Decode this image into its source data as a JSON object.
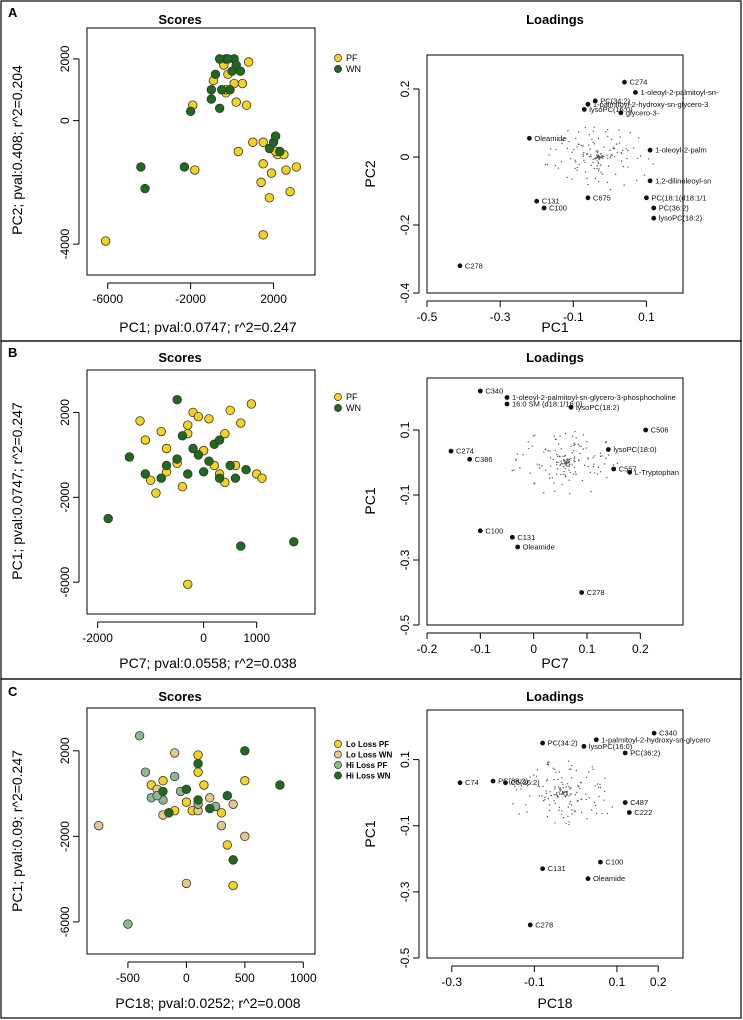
{
  "colors": {
    "pf": "#f3d31f",
    "wn": "#1e6b1e",
    "lo_pf": "#f3d31f",
    "lo_wn": "#e3c88a",
    "hi_pf": "#8fb890",
    "hi_wn": "#1e6b1e",
    "stroke": "#333333",
    "dot": "#111111"
  },
  "chart_data": [
    {
      "panel": "A",
      "type": "scatter",
      "title": "Scores",
      "xlabel": "PC1; pval:0.0747; r^2=0.247",
      "ylabel": "PC2; pval:0.408; r^2=0.204",
      "xlim": [
        -7000,
        4000
      ],
      "ylim": [
        -5000,
        3000
      ],
      "xticks": [
        -6000,
        -2000,
        2000
      ],
      "yticks": [
        -4000,
        0,
        2000
      ],
      "legend": [
        {
          "label": "PF",
          "color": "#f3d31f"
        },
        {
          "label": "WN",
          "color": "#1e6b1e"
        }
      ],
      "series": [
        {
          "name": "PF",
          "color": "#f3d31f",
          "points": [
            [
              -6100,
              -3900
            ],
            [
              -1800,
              -1600
            ],
            [
              -400,
              1800
            ],
            [
              -200,
              1500
            ],
            [
              100,
              1200
            ],
            [
              500,
              1200
            ],
            [
              800,
              1900
            ],
            [
              -900,
              1300
            ],
            [
              -300,
              900
            ],
            [
              200,
              600
            ],
            [
              700,
              500
            ],
            [
              -1900,
              500
            ],
            [
              300,
              -1000
            ],
            [
              1000,
              -700
            ],
            [
              1500,
              -700
            ],
            [
              2200,
              -1100
            ],
            [
              2500,
              -1100
            ],
            [
              3100,
              -1500
            ],
            [
              1900,
              -1700
            ],
            [
              1400,
              -2000
            ],
            [
              1800,
              -2500
            ],
            [
              1500,
              -3700
            ],
            [
              2600,
              -1600
            ],
            [
              1500,
              -1400
            ],
            [
              2100,
              -1000
            ],
            [
              -300,
              1000
            ],
            [
              2800,
              -2300
            ]
          ]
        },
        {
          "name": "WN",
          "color": "#1e6b1e",
          "points": [
            [
              -4400,
              -1500
            ],
            [
              -4200,
              -2200
            ],
            [
              -2300,
              -1500
            ],
            [
              -2000,
              300
            ],
            [
              -800,
              1500
            ],
            [
              -500,
              1000
            ],
            [
              -300,
              2000
            ],
            [
              100,
              2000
            ],
            [
              200,
              1800
            ],
            [
              -600,
              400
            ],
            [
              -1000,
              1000
            ],
            [
              -600,
              2000
            ],
            [
              0,
              1600
            ],
            [
              -200,
              2000
            ],
            [
              400,
              1600
            ],
            [
              1800,
              -900
            ],
            [
              2000,
              -700
            ],
            [
              2100,
              -500
            ],
            [
              2300,
              -1000
            ],
            [
              -1000,
              700
            ],
            [
              -100,
              1000
            ]
          ]
        }
      ]
    },
    {
      "panel": "A",
      "type": "scatter",
      "title": "Loadings",
      "xlabel": "PC1",
      "ylabel": "PC2",
      "xlim": [
        -0.5,
        0.2
      ],
      "ylim": [
        -0.4,
        0.3
      ],
      "xticks": [
        -0.5,
        -0.3,
        -0.1,
        0.1
      ],
      "yticks": [
        -0.4,
        -0.2,
        0.0,
        0.2
      ],
      "labeled_points": [
        {
          "label": "C274",
          "x": 0.04,
          "y": 0.22
        },
        {
          "label": "1-oleoyl-2-palmitoyl-sn-",
          "x": 0.07,
          "y": 0.19
        },
        {
          "label": "PC(34:2)",
          "x": -0.04,
          "y": 0.165
        },
        {
          "label": "1-palmitoyl-2-hydroxy-sn-glycero-3",
          "x": -0.06,
          "y": 0.155
        },
        {
          "label": "lysoPC(16:0)",
          "x": -0.07,
          "y": 0.14
        },
        {
          "label": "glycero-3-",
          "x": 0.03,
          "y": 0.13
        },
        {
          "label": "Oleamide",
          "x": -0.22,
          "y": 0.055
        },
        {
          "label": "1-oleoyl-2-palm",
          "x": 0.11,
          "y": 0.02
        },
        {
          "label": "1,2-dilinoleoyl-sn",
          "x": 0.11,
          "y": -0.07
        },
        {
          "label": "PC(18:1(d18:1/1",
          "x": 0.1,
          "y": -0.12
        },
        {
          "label": "PC(36:2)",
          "x": 0.12,
          "y": -0.15
        },
        {
          "label": "C675",
          "x": -0.06,
          "y": -0.12
        },
        {
          "label": "C131",
          "x": -0.2,
          "y": -0.13
        },
        {
          "label": "C100",
          "x": -0.18,
          "y": -0.15
        },
        {
          "label": "lysoPC(18:2)",
          "x": 0.12,
          "y": -0.18
        },
        {
          "label": "C278",
          "x": -0.41,
          "y": -0.32
        }
      ]
    },
    {
      "panel": "B",
      "type": "scatter",
      "title": "Scores",
      "xlabel": "PC7; pval:0.0558; r^2=0.038",
      "ylabel": "PC1; pval:0.0747; r^2=0.247",
      "xlim": [
        -2200,
        2100
      ],
      "ylim": [
        -7500,
        4000
      ],
      "xticks": [
        -2000,
        0,
        1000
      ],
      "yticks": [
        -6000,
        -2000,
        2000
      ],
      "legend": [
        {
          "label": "PF",
          "color": "#f3d31f"
        },
        {
          "label": "WN",
          "color": "#1e6b1e"
        }
      ],
      "series": [
        {
          "name": "PF",
          "color": "#f3d31f",
          "points": [
            [
              -1200,
              1600
            ],
            [
              -1100,
              700
            ],
            [
              -1000,
              -1200
            ],
            [
              -900,
              -1800
            ],
            [
              -800,
              1100
            ],
            [
              -700,
              300
            ],
            [
              -500,
              -400
            ],
            [
              -300,
              1400
            ],
            [
              -300,
              1000
            ],
            [
              -200,
              2000
            ],
            [
              -100,
              1800
            ],
            [
              0,
              200
            ],
            [
              100,
              1700
            ],
            [
              200,
              -500
            ],
            [
              400,
              1000
            ],
            [
              400,
              -1300
            ],
            [
              500,
              2100
            ],
            [
              600,
              -500
            ],
            [
              700,
              1500
            ],
            [
              900,
              2400
            ],
            [
              1000,
              -900
            ],
            [
              1100,
              -1100
            ],
            [
              -400,
              -1500
            ],
            [
              -700,
              -800
            ],
            [
              -300,
              -6100
            ],
            [
              300,
              -900
            ]
          ]
        },
        {
          "name": "WN",
          "color": "#1e6b1e",
          "points": [
            [
              -1800,
              -3000
            ],
            [
              -1400,
              -100
            ],
            [
              -1100,
              -900
            ],
            [
              -800,
              -1100
            ],
            [
              -700,
              -500
            ],
            [
              -500,
              -200
            ],
            [
              -500,
              2600
            ],
            [
              -400,
              900
            ],
            [
              -300,
              -900
            ],
            [
              -100,
              0
            ],
            [
              0,
              -800
            ],
            [
              100,
              -300
            ],
            [
              200,
              500
            ],
            [
              300,
              -1100
            ],
            [
              300,
              700
            ],
            [
              500,
              -500
            ],
            [
              600,
              -1100
            ],
            [
              700,
              -4300
            ],
            [
              800,
              -700
            ],
            [
              1700,
              -4100
            ],
            [
              -200,
              300
            ]
          ]
        }
      ]
    },
    {
      "panel": "B",
      "type": "scatter",
      "title": "Loadings",
      "xlabel": "PC7",
      "ylabel": "PC1",
      "xlim": [
        -0.2,
        0.28
      ],
      "ylim": [
        -0.5,
        0.26
      ],
      "xticks": [
        -0.2,
        -0.1,
        0.0,
        0.1,
        0.2
      ],
      "yticks": [
        -0.5,
        -0.3,
        -0.1,
        0.1
      ],
      "labeled_points": [
        {
          "label": "C340",
          "x": -0.1,
          "y": 0.22
        },
        {
          "label": "1-oleoyl-2-palmitoyl-sn-glycero-3-phosphocholine",
          "x": -0.05,
          "y": 0.2
        },
        {
          "label": "16:0 SM (d18:1/16:0)",
          "x": -0.05,
          "y": 0.18
        },
        {
          "label": "lysoPC(18:2)",
          "x": 0.07,
          "y": 0.17
        },
        {
          "label": "C506",
          "x": 0.21,
          "y": 0.1
        },
        {
          "label": "C274",
          "x": -0.155,
          "y": 0.035
        },
        {
          "label": "C386",
          "x": -0.12,
          "y": 0.01
        },
        {
          "label": "lysoPC(18:0)",
          "x": 0.14,
          "y": 0.04
        },
        {
          "label": "C557",
          "x": 0.15,
          "y": -0.02
        },
        {
          "label": "L-Tryptophan",
          "x": 0.18,
          "y": -0.03
        },
        {
          "label": "C100",
          "x": -0.1,
          "y": -0.21
        },
        {
          "label": "C131",
          "x": -0.04,
          "y": -0.23
        },
        {
          "label": "Oleamide",
          "x": -0.03,
          "y": -0.26
        },
        {
          "label": "C278",
          "x": 0.09,
          "y": -0.4
        }
      ]
    },
    {
      "panel": "C",
      "type": "scatter",
      "title": "Scores",
      "xlabel": "PC18; pval:0.0252; r^2=0.008",
      "ylabel": "PC1; pval:0.09; r^2=0.247",
      "xlim": [
        -850,
        1100
      ],
      "ylim": [
        -7500,
        4000
      ],
      "xticks": [
        -500,
        0,
        500,
        1000
      ],
      "yticks": [
        -6000,
        -2000,
        2000
      ],
      "legend": [
        {
          "label": "Lo Loss PF",
          "color": "#f3d31f"
        },
        {
          "label": "Lo Loss WN",
          "color": "#e3c88a"
        },
        {
          "label": "Hi Loss PF",
          "color": "#8fb890"
        },
        {
          "label": "Hi Loss WN",
          "color": "#1e6b1e"
        }
      ],
      "series": [
        {
          "name": "Lo Loss PF",
          "color": "#f3d31f",
          "points": [
            [
              -300,
              400
            ],
            [
              -200,
              600
            ],
            [
              -100,
              -800
            ],
            [
              0,
              -400
            ],
            [
              100,
              1000
            ],
            [
              150,
              400
            ],
            [
              300,
              -900
            ],
            [
              350,
              -2400
            ],
            [
              400,
              -4300
            ],
            [
              500,
              600
            ],
            [
              -150,
              -900
            ],
            [
              100,
              1800
            ],
            [
              50,
              -800
            ]
          ]
        },
        {
          "name": "Lo Loss WN",
          "color": "#e3c88a",
          "points": [
            [
              -750,
              -1500
            ],
            [
              -250,
              200
            ],
            [
              -100,
              1900
            ],
            [
              0,
              -4200
            ],
            [
              100,
              -800
            ],
            [
              200,
              -200
            ],
            [
              300,
              -1500
            ],
            [
              400,
              -500
            ],
            [
              -200,
              -1000
            ],
            [
              500,
              -2000
            ]
          ]
        },
        {
          "name": "Hi Loss PF",
          "color": "#8fb890",
          "points": [
            [
              -400,
              2700
            ],
            [
              -350,
              1000
            ],
            [
              -300,
              -200
            ],
            [
              -200,
              -300
            ],
            [
              -100,
              800
            ],
            [
              -50,
              100
            ],
            [
              100,
              -500
            ],
            [
              250,
              -600
            ],
            [
              -500,
              -6100
            ],
            [
              -250,
              -100
            ]
          ]
        },
        {
          "name": "Hi Loss WN",
          "color": "#1e6b1e",
          "points": [
            [
              -200,
              100
            ],
            [
              0,
              200
            ],
            [
              100,
              1400
            ],
            [
              200,
              -700
            ],
            [
              350,
              -100
            ],
            [
              400,
              -3100
            ],
            [
              500,
              2000
            ],
            [
              800,
              400
            ],
            [
              -150,
              -900
            ],
            [
              100,
              -300
            ]
          ]
        }
      ]
    },
    {
      "panel": "C",
      "type": "scatter",
      "title": "Loadings",
      "xlabel": "PC18",
      "ylabel": "PC1",
      "xlim": [
        -0.36,
        0.26
      ],
      "ylim": [
        -0.5,
        0.25
      ],
      "xticks": [
        -0.3,
        -0.1,
        0.1,
        0.2
      ],
      "yticks": [
        -0.5,
        -0.3,
        -0.1,
        0.1
      ],
      "labeled_points": [
        {
          "label": "C340",
          "x": 0.19,
          "y": 0.18
        },
        {
          "label": "1-palmitoyl-2-hydroxy-sn-glycero",
          "x": 0.05,
          "y": 0.16
        },
        {
          "label": "lysoPC(16:0)",
          "x": 0.02,
          "y": 0.14
        },
        {
          "label": "PC(34:2)",
          "x": -0.08,
          "y": 0.15
        },
        {
          "label": "PC(36:2)",
          "x": 0.12,
          "y": 0.12
        },
        {
          "label": "C74",
          "x": -0.28,
          "y": 0.03
        },
        {
          "label": "PC(38:2)",
          "x": -0.2,
          "y": 0.035
        },
        {
          "label": "C5(36:2)",
          "x": -0.17,
          "y": 0.03
        },
        {
          "label": "C487",
          "x": 0.12,
          "y": -0.03
        },
        {
          "label": "C222",
          "x": 0.13,
          "y": -0.06
        },
        {
          "label": "C100",
          "x": 0.06,
          "y": -0.21
        },
        {
          "label": "C131",
          "x": -0.08,
          "y": -0.23
        },
        {
          "label": "Oleamide",
          "x": 0.03,
          "y": -0.26
        },
        {
          "label": "C278",
          "x": -0.11,
          "y": -0.4
        }
      ]
    }
  ],
  "panel_labels": [
    "A",
    "B",
    "C"
  ]
}
